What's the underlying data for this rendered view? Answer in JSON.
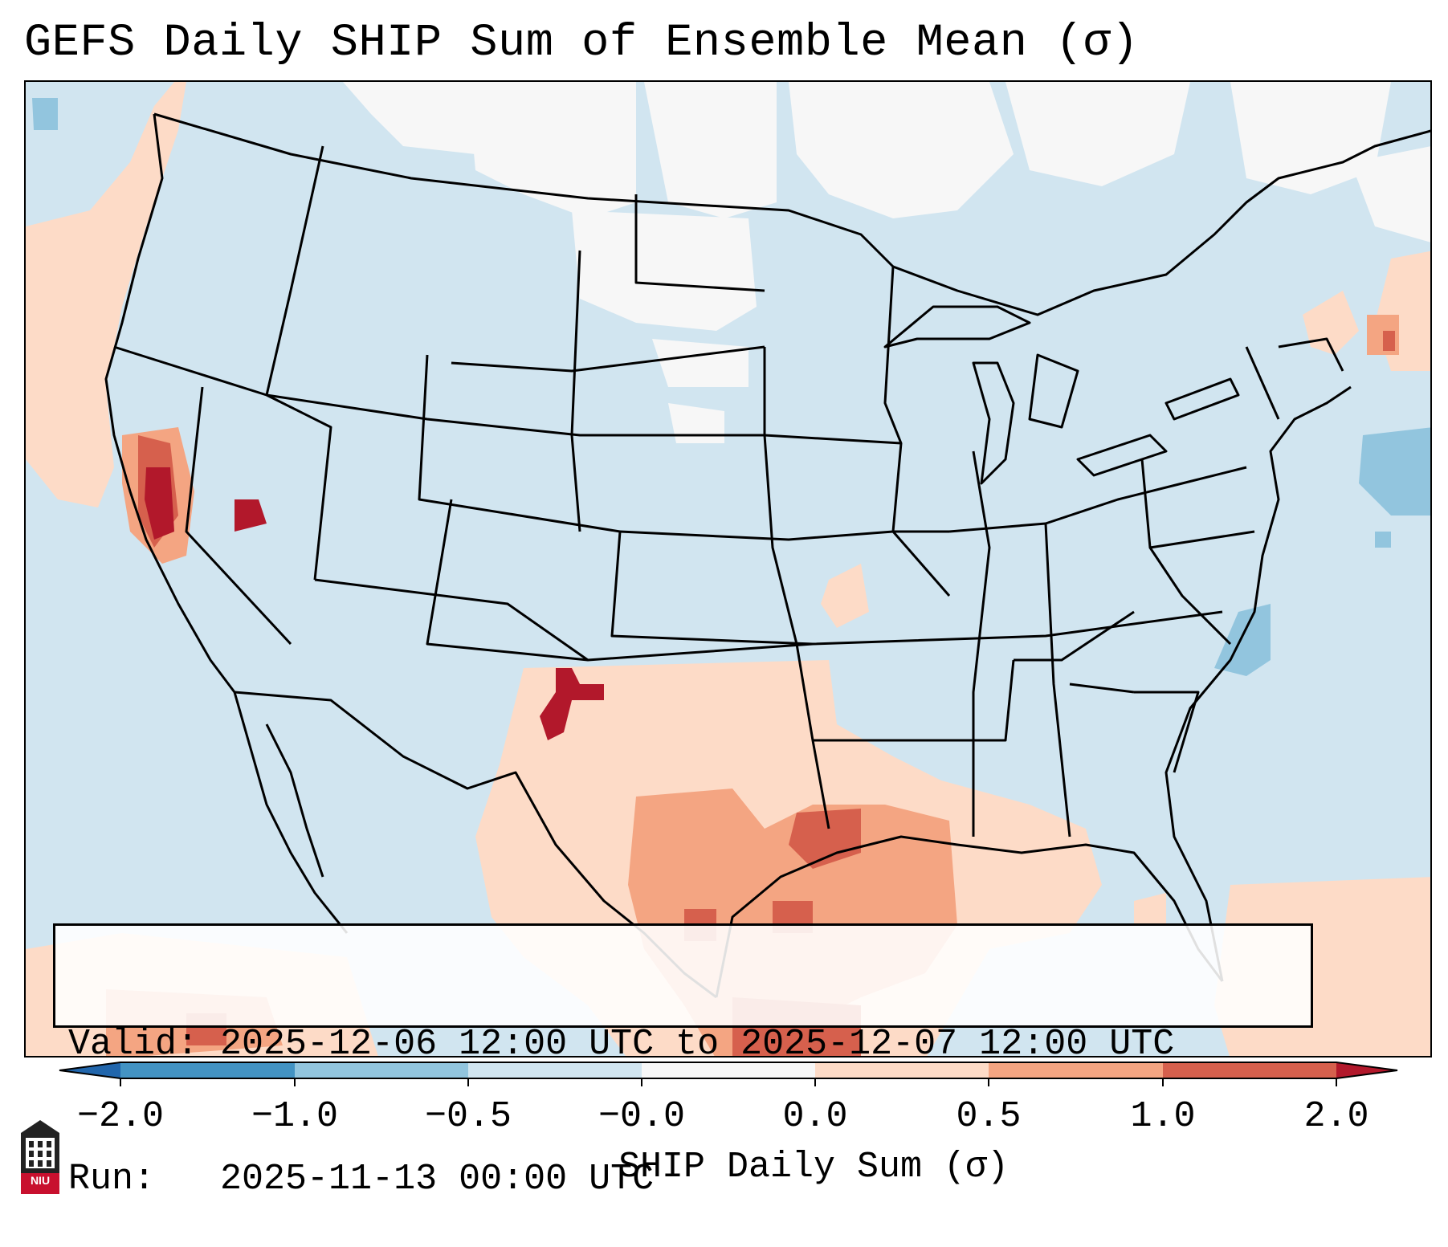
{
  "title": "GEFS Daily SHIP Sum of Ensemble Mean (σ)",
  "info": {
    "valid_line": "Valid: 2025-12-06 12:00 UTC to 2025-12-07 12:00 UTC",
    "run_line": "Run:   2025-11-13 00:00 UTC"
  },
  "colorbar": {
    "label": "SHIP Daily Sum (σ)",
    "ticks": [
      "−2.0",
      "−1.0",
      "−0.5",
      "−0.0",
      "0.0",
      "0.5",
      "1.0",
      "2.0"
    ],
    "colors": {
      "under": "#2166ac",
      "bin_neg2_neg1": "#4393c3",
      "bin_neg1_neg05": "#92c5de",
      "bin_neg05_0": "#d1e5f0",
      "bin_zero": "#f7f7f7",
      "bin_0_05": "#fddbc7",
      "bin_05_1": "#f4a582",
      "bin_1_2": "#d6604d",
      "over": "#b2182b"
    }
  },
  "logo": {
    "text": "NIU",
    "icon": "university-building-icon"
  }
}
